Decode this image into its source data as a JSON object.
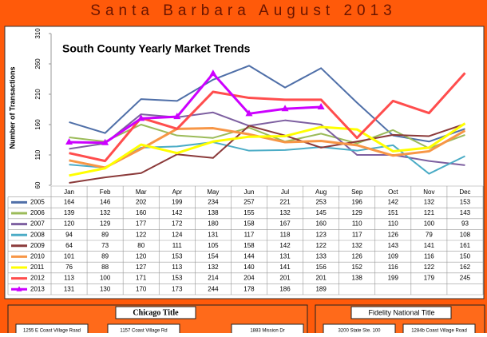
{
  "banner": "Santa Barbara August 2013",
  "chart_data": {
    "type": "line",
    "title": "South County Yearly Market Trends",
    "y_label": "Number of Transactions",
    "categories": [
      "Jan",
      "Feb",
      "Mar",
      "Apr",
      "May",
      "Jun",
      "Jul",
      "Aug",
      "Sep",
      "Oct",
      "Nov",
      "Dec"
    ],
    "ylim": [
      60,
      310
    ],
    "yticks": [
      60,
      110,
      160,
      210,
      260,
      310
    ],
    "grid": false,
    "series": [
      {
        "name": "2005",
        "color": "#4f6fa8",
        "values": [
          164,
          146,
          202,
          199,
          234,
          257,
          221,
          253,
          196,
          142,
          132,
          153
        ]
      },
      {
        "name": "2006",
        "color": "#9bbb59",
        "values": [
          139,
          132,
          160,
          142,
          138,
          155,
          132,
          145,
          129,
          151,
          121,
          143
        ]
      },
      {
        "name": "2007",
        "color": "#7d5fa0",
        "values": [
          120,
          129,
          177,
          172,
          180,
          158,
          167,
          160,
          110,
          110,
          100,
          93
        ]
      },
      {
        "name": "2008",
        "color": "#4bacc6",
        "values": [
          94,
          89,
          122,
          124,
          131,
          117,
          118,
          123,
          117,
          126,
          79,
          108
        ]
      },
      {
        "name": "2009",
        "color": "#8b3a3a",
        "values": [
          64,
          73,
          80,
          111,
          105,
          158,
          142,
          122,
          132,
          143,
          141,
          161
        ]
      },
      {
        "name": "2010",
        "color": "#f79646",
        "values": [
          101,
          89,
          120,
          153,
          154,
          144,
          131,
          133,
          126,
          109,
          116,
          150
        ]
      },
      {
        "name": "2011",
        "color": "#ffff00",
        "values": [
          76,
          88,
          127,
          113,
          132,
          140,
          141,
          156,
          152,
          116,
          122,
          162
        ]
      },
      {
        "name": "2012",
        "color": "#ff4d4d",
        "values": [
          113,
          100,
          171,
          153,
          214,
          204,
          201,
          201,
          138,
          199,
          179,
          245
        ]
      },
      {
        "name": "2013",
        "color": "#cc00ff",
        "marker": "triangle",
        "values": [
          131,
          130,
          170,
          173,
          244,
          178,
          186,
          189,
          null,
          null,
          null,
          null
        ]
      }
    ]
  },
  "footer": {
    "left": {
      "name": "Chicago Title",
      "addresses": [
        "1255 E Coast Village Road",
        "1157 Coast Village Rd",
        "1883 Mission Dr"
      ]
    },
    "right": {
      "name": "Fidelity National Title",
      "addresses": [
        "3200 State Ste. 100",
        "1284b Coast Village Road"
      ]
    }
  }
}
